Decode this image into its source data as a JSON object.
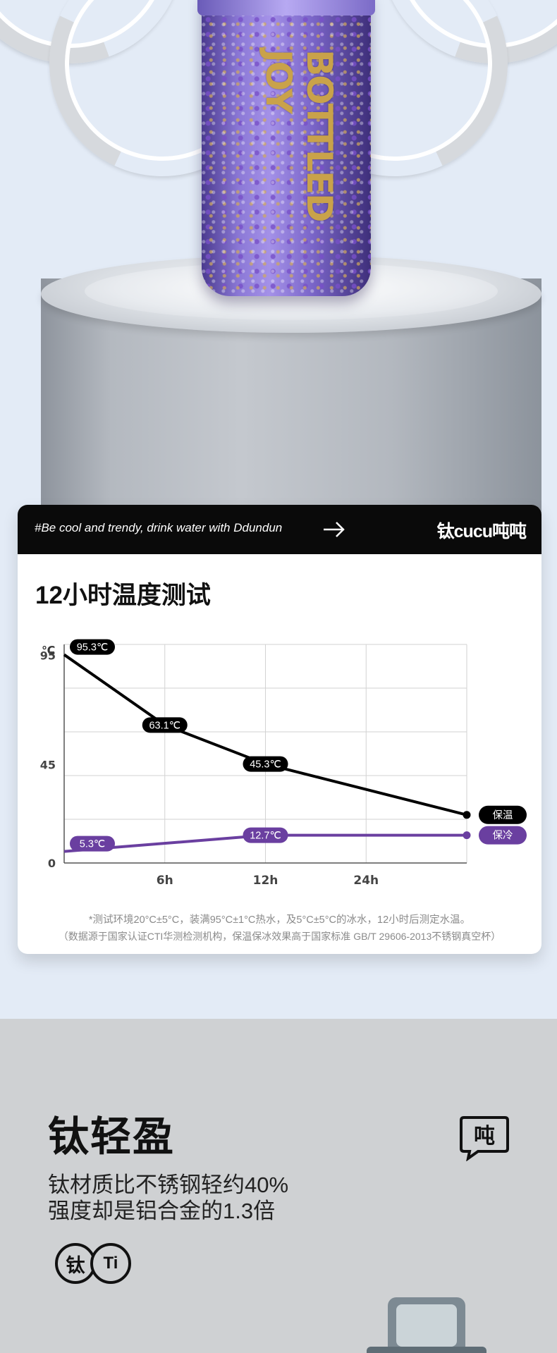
{
  "product": {
    "bottle_brand": "BOTTLED JOY"
  },
  "card": {
    "tagline": "#Be cool and trendy, drink water with Ddundun",
    "brand": "钛cucu吨吨",
    "title": "12小时温度测试",
    "footnote_1": "*测试环境20°C±5°C，装满95°C±1°C热水，及5°C±5°C的冰水，12小时后测定水温。",
    "footnote_2": "（数据源于国家认证CTI华测检测机构，保温保冰效果高于国家标准 GB/T 29606-2013不锈钢真空杯）"
  },
  "chart_data": {
    "type": "line",
    "ylabel": "℃",
    "y_ticks": [
      "95",
      "45",
      "0"
    ],
    "x_ticks": [
      "6h",
      "12h",
      "24h"
    ],
    "ylim": [
      0,
      100
    ],
    "grid": true,
    "series": [
      {
        "name": "保温",
        "color": "#000000",
        "points": [
          {
            "x": 0,
            "y": 95.3,
            "label": "95.3℃"
          },
          {
            "x": 1,
            "y": 63.1,
            "label": "63.1℃"
          },
          {
            "x": 2,
            "y": 45.3,
            "label": "45.3℃"
          },
          {
            "x": 4,
            "y": 22
          }
        ]
      },
      {
        "name": "保冷",
        "color": "#6a3fa0",
        "points": [
          {
            "x": 0,
            "y": 5.3,
            "label": "5.3℃"
          },
          {
            "x": 2,
            "y": 12.7,
            "label": "12.7℃"
          },
          {
            "x": 4,
            "y": 12.7
          }
        ]
      }
    ]
  },
  "section2": {
    "title": "钛轻盈",
    "line_1": "钛材质比不锈钢轻约40%",
    "line_2": "强度却是铝合金的1.3倍",
    "badge_1": "钛",
    "badge_2": "Ti",
    "logo_glyph": "吨"
  }
}
